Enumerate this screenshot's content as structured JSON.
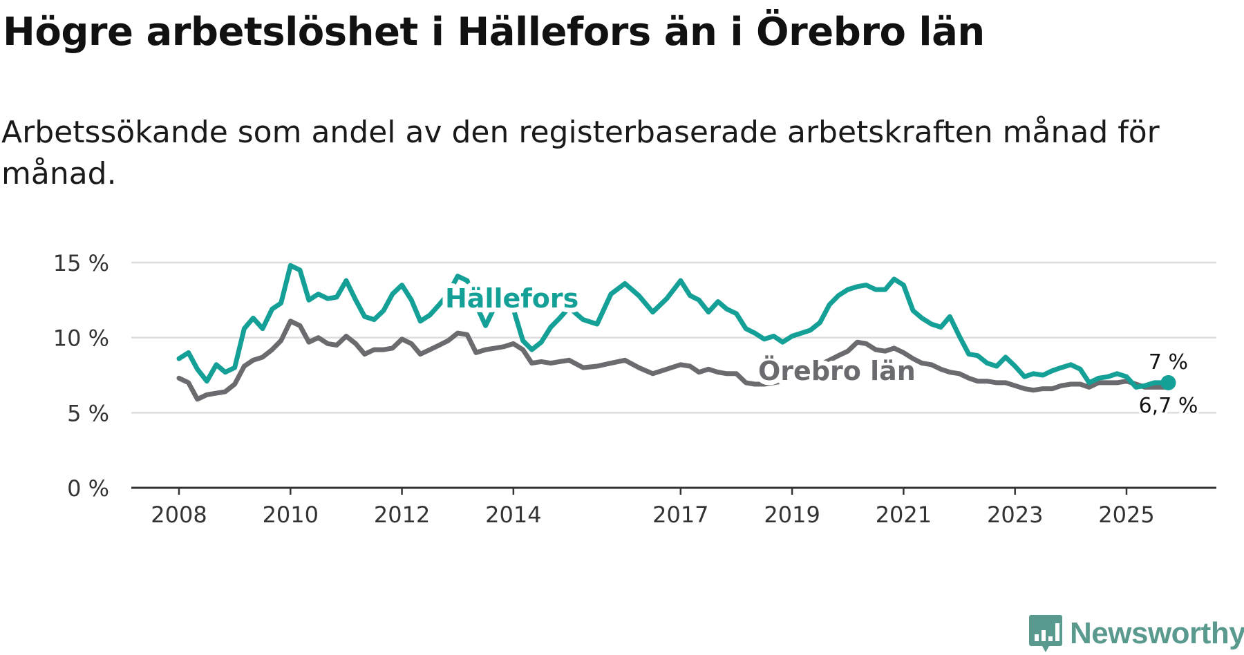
{
  "title": "Högre arbetslöshet i Hällefors än i Örebro län",
  "subtitle": "Arbetssökande som andel av den registerbaserade arbetskraften månad för månad.",
  "brand": {
    "name": "Newsworthy",
    "icon": "newsworthy-logo-icon",
    "color": "#5a9a8e"
  },
  "colors": {
    "hallefors": "#14a096",
    "orebro": "#6b6b6f",
    "grid": "#dddddd",
    "axis": "#333333"
  },
  "chart_data": {
    "type": "line",
    "title": "Högre arbetslöshet i Hällefors än i Örebro län",
    "xlabel": "",
    "ylabel": "",
    "ylim": [
      0,
      15
    ],
    "xlim": [
      2008.0,
      2025.9
    ],
    "y_ticks": [
      {
        "value": 0,
        "label": "0 %"
      },
      {
        "value": 5,
        "label": "5 %"
      },
      {
        "value": 10,
        "label": "10 %"
      },
      {
        "value": 15,
        "label": "15 %"
      }
    ],
    "x_ticks": [
      {
        "value": 2008,
        "label": "2008"
      },
      {
        "value": 2010,
        "label": "2010"
      },
      {
        "value": 2012,
        "label": "2012"
      },
      {
        "value": 2014,
        "label": "2014"
      },
      {
        "value": 2017,
        "label": "2017"
      },
      {
        "value": 2019,
        "label": "2019"
      },
      {
        "value": 2021,
        "label": "2021"
      },
      {
        "value": 2023,
        "label": "2023"
      },
      {
        "value": 2025,
        "label": "2025"
      }
    ],
    "series": [
      {
        "name": "Hällefors",
        "label": "Hällefors",
        "end_label": "7 %",
        "end_value": 7.0,
        "points": [
          [
            2008.0,
            8.6
          ],
          [
            2008.17,
            9.0
          ],
          [
            2008.33,
            7.9
          ],
          [
            2008.5,
            7.1
          ],
          [
            2008.67,
            8.2
          ],
          [
            2008.83,
            7.7
          ],
          [
            2009.0,
            8.0
          ],
          [
            2009.17,
            10.6
          ],
          [
            2009.33,
            11.3
          ],
          [
            2009.5,
            10.6
          ],
          [
            2009.67,
            11.9
          ],
          [
            2009.83,
            12.3
          ],
          [
            2010.0,
            14.8
          ],
          [
            2010.17,
            14.5
          ],
          [
            2010.33,
            12.5
          ],
          [
            2010.5,
            12.9
          ],
          [
            2010.67,
            12.6
          ],
          [
            2010.83,
            12.7
          ],
          [
            2011.0,
            13.8
          ],
          [
            2011.17,
            12.5
          ],
          [
            2011.33,
            11.4
          ],
          [
            2011.5,
            11.2
          ],
          [
            2011.67,
            11.8
          ],
          [
            2011.83,
            12.9
          ],
          [
            2012.0,
            13.5
          ],
          [
            2012.17,
            12.5
          ],
          [
            2012.33,
            11.1
          ],
          [
            2012.5,
            11.5
          ],
          [
            2012.67,
            12.2
          ],
          [
            2012.83,
            12.9
          ],
          [
            2013.0,
            14.1
          ],
          [
            2013.17,
            13.8
          ],
          [
            2013.33,
            12.2
          ],
          [
            2013.5,
            10.8
          ],
          [
            2013.67,
            12.1
          ],
          [
            2013.83,
            12.3
          ],
          [
            2014.0,
            11.9
          ],
          [
            2014.17,
            9.8
          ],
          [
            2014.33,
            9.2
          ],
          [
            2014.5,
            9.7
          ],
          [
            2014.67,
            10.7
          ],
          [
            2014.83,
            11.3
          ],
          [
            2015.0,
            12.0
          ],
          [
            2015.25,
            11.2
          ],
          [
            2015.5,
            10.9
          ],
          [
            2015.75,
            12.9
          ],
          [
            2016.0,
            13.6
          ],
          [
            2016.25,
            12.8
          ],
          [
            2016.5,
            11.7
          ],
          [
            2016.75,
            12.6
          ],
          [
            2017.0,
            13.8
          ],
          [
            2017.17,
            12.8
          ],
          [
            2017.33,
            12.5
          ],
          [
            2017.5,
            11.7
          ],
          [
            2017.67,
            12.4
          ],
          [
            2017.83,
            11.9
          ],
          [
            2018.0,
            11.6
          ],
          [
            2018.17,
            10.6
          ],
          [
            2018.33,
            10.3
          ],
          [
            2018.5,
            9.9
          ],
          [
            2018.67,
            10.1
          ],
          [
            2018.83,
            9.7
          ],
          [
            2019.0,
            10.1
          ],
          [
            2019.17,
            10.3
          ],
          [
            2019.33,
            10.5
          ],
          [
            2019.5,
            11.0
          ],
          [
            2019.67,
            12.2
          ],
          [
            2019.83,
            12.8
          ],
          [
            2020.0,
            13.2
          ],
          [
            2020.17,
            13.4
          ],
          [
            2020.33,
            13.5
          ],
          [
            2020.5,
            13.2
          ],
          [
            2020.67,
            13.2
          ],
          [
            2020.83,
            13.9
          ],
          [
            2021.0,
            13.5
          ],
          [
            2021.17,
            11.8
          ],
          [
            2021.33,
            11.3
          ],
          [
            2021.5,
            10.9
          ],
          [
            2021.67,
            10.7
          ],
          [
            2021.83,
            11.4
          ],
          [
            2022.0,
            10.1
          ],
          [
            2022.17,
            8.9
          ],
          [
            2022.33,
            8.8
          ],
          [
            2022.5,
            8.3
          ],
          [
            2022.67,
            8.1
          ],
          [
            2022.83,
            8.7
          ],
          [
            2023.0,
            8.1
          ],
          [
            2023.17,
            7.4
          ],
          [
            2023.33,
            7.6
          ],
          [
            2023.5,
            7.5
          ],
          [
            2023.67,
            7.8
          ],
          [
            2023.83,
            8.0
          ],
          [
            2024.0,
            8.2
          ],
          [
            2024.17,
            7.9
          ],
          [
            2024.33,
            7.0
          ],
          [
            2024.5,
            7.3
          ],
          [
            2024.67,
            7.4
          ],
          [
            2024.83,
            7.6
          ],
          [
            2025.0,
            7.4
          ],
          [
            2025.17,
            6.7
          ],
          [
            2025.33,
            6.8
          ],
          [
            2025.5,
            7.0
          ],
          [
            2025.67,
            7.0
          ],
          [
            2025.75,
            7.0
          ]
        ]
      },
      {
        "name": "Örebro län",
        "label": "Örebro län",
        "end_label": "6,7 %",
        "end_value": 6.7,
        "points": [
          [
            2008.0,
            7.3
          ],
          [
            2008.17,
            7.0
          ],
          [
            2008.33,
            5.9
          ],
          [
            2008.5,
            6.2
          ],
          [
            2008.67,
            6.3
          ],
          [
            2008.83,
            6.4
          ],
          [
            2009.0,
            6.9
          ],
          [
            2009.17,
            8.1
          ],
          [
            2009.33,
            8.5
          ],
          [
            2009.5,
            8.7
          ],
          [
            2009.67,
            9.2
          ],
          [
            2009.83,
            9.8
          ],
          [
            2010.0,
            11.1
          ],
          [
            2010.17,
            10.8
          ],
          [
            2010.33,
            9.7
          ],
          [
            2010.5,
            10.0
          ],
          [
            2010.67,
            9.6
          ],
          [
            2010.83,
            9.5
          ],
          [
            2011.0,
            10.1
          ],
          [
            2011.17,
            9.6
          ],
          [
            2011.33,
            8.9
          ],
          [
            2011.5,
            9.2
          ],
          [
            2011.67,
            9.2
          ],
          [
            2011.83,
            9.3
          ],
          [
            2012.0,
            9.9
          ],
          [
            2012.17,
            9.6
          ],
          [
            2012.33,
            8.9
          ],
          [
            2012.5,
            9.2
          ],
          [
            2012.67,
            9.5
          ],
          [
            2012.83,
            9.8
          ],
          [
            2013.0,
            10.3
          ],
          [
            2013.17,
            10.2
          ],
          [
            2013.33,
            9.0
          ],
          [
            2013.5,
            9.2
          ],
          [
            2013.67,
            9.3
          ],
          [
            2013.83,
            9.4
          ],
          [
            2014.0,
            9.6
          ],
          [
            2014.17,
            9.2
          ],
          [
            2014.33,
            8.3
          ],
          [
            2014.5,
            8.4
          ],
          [
            2014.67,
            8.3
          ],
          [
            2014.83,
            8.4
          ],
          [
            2015.0,
            8.5
          ],
          [
            2015.25,
            8.0
          ],
          [
            2015.5,
            8.1
          ],
          [
            2015.75,
            8.3
          ],
          [
            2016.0,
            8.5
          ],
          [
            2016.25,
            8.0
          ],
          [
            2016.5,
            7.6
          ],
          [
            2016.75,
            7.9
          ],
          [
            2017.0,
            8.2
          ],
          [
            2017.17,
            8.1
          ],
          [
            2017.33,
            7.7
          ],
          [
            2017.5,
            7.9
          ],
          [
            2017.67,
            7.7
          ],
          [
            2017.83,
            7.6
          ],
          [
            2018.0,
            7.6
          ],
          [
            2018.17,
            7.0
          ],
          [
            2018.33,
            6.9
          ],
          [
            2018.5,
            6.9
          ],
          [
            2018.67,
            7.0
          ],
          [
            2018.83,
            7.1
          ],
          [
            2019.0,
            7.3
          ],
          [
            2019.17,
            7.6
          ],
          [
            2019.33,
            7.9
          ],
          [
            2019.5,
            8.2
          ],
          [
            2019.67,
            8.5
          ],
          [
            2019.83,
            8.8
          ],
          [
            2020.0,
            9.1
          ],
          [
            2020.17,
            9.7
          ],
          [
            2020.33,
            9.6
          ],
          [
            2020.5,
            9.2
          ],
          [
            2020.67,
            9.1
          ],
          [
            2020.83,
            9.3
          ],
          [
            2021.0,
            9.0
          ],
          [
            2021.17,
            8.6
          ],
          [
            2021.33,
            8.3
          ],
          [
            2021.5,
            8.2
          ],
          [
            2021.67,
            7.9
          ],
          [
            2021.83,
            7.7
          ],
          [
            2022.0,
            7.6
          ],
          [
            2022.17,
            7.3
          ],
          [
            2022.33,
            7.1
          ],
          [
            2022.5,
            7.1
          ],
          [
            2022.67,
            7.0
          ],
          [
            2022.83,
            7.0
          ],
          [
            2023.0,
            6.8
          ],
          [
            2023.17,
            6.6
          ],
          [
            2023.33,
            6.5
          ],
          [
            2023.5,
            6.6
          ],
          [
            2023.67,
            6.6
          ],
          [
            2023.83,
            6.8
          ],
          [
            2024.0,
            6.9
          ],
          [
            2024.17,
            6.9
          ],
          [
            2024.33,
            6.7
          ],
          [
            2024.5,
            7.0
          ],
          [
            2024.67,
            7.0
          ],
          [
            2024.83,
            7.0
          ],
          [
            2025.0,
            7.1
          ],
          [
            2025.17,
            6.9
          ],
          [
            2025.33,
            6.7
          ],
          [
            2025.5,
            6.7
          ],
          [
            2025.67,
            6.7
          ],
          [
            2025.75,
            6.7
          ]
        ]
      }
    ]
  }
}
